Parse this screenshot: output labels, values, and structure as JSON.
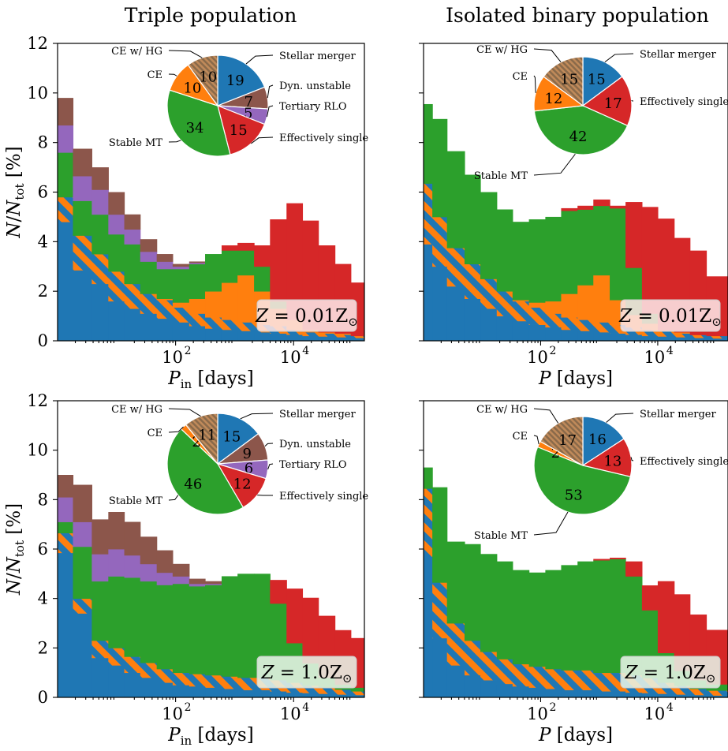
{
  "colors": {
    "ce_with_hg": "#A07848",
    "stellar_merger": "#1F77B4",
    "dyn_unstable": "#8C564B",
    "tertiary_rlo": "#9467BD",
    "effectively_single": "#D62728",
    "stable_mt": "#2CA02C",
    "ce": "#FF7F0E",
    "hatch_a": "#FF7F0E",
    "hatch_b": "#1F77B4"
  },
  "columns": [
    {
      "title": "Triple population"
    },
    {
      "title": "Isolated binary population"
    }
  ],
  "chart_data": [
    {
      "id": "triple-low-z",
      "type": "bar",
      "title": "Triple population",
      "xlabel_main": "P",
      "xlabel_sub": "in",
      "xlabel_unit": "[days]",
      "ylabel": "N/N_tot [%]",
      "ylim": [
        0,
        12
      ],
      "xscale": "log",
      "xlim_log10": [
        0.0,
        5.2
      ],
      "bin_edges_log10": [
        0.0,
        0.26,
        0.58,
        0.86,
        1.13,
        1.4,
        1.68,
        1.95,
        2.23,
        2.5,
        2.78,
        3.05,
        3.33,
        3.6,
        3.88,
        4.15,
        4.42,
        4.7,
        4.97,
        5.2
      ],
      "yticks": [
        0,
        2,
        4,
        6,
        8,
        10,
        12
      ],
      "xticks": [
        {
          "pos": 2,
          "label": "10",
          "exp": "2"
        },
        {
          "pos": 4,
          "label": "10",
          "exp": "4"
        }
      ],
      "stack_order": [
        "stellar_merger",
        "ce_with_hg",
        "ce",
        "stable_mt",
        "effectively_single",
        "tertiary_rlo",
        "dyn_unstable"
      ],
      "series": [
        {
          "key": "stellar_merger",
          "name": "Stellar merger",
          "values": [
            4.8,
            2.85,
            2.3,
            1.6,
            1.3,
            1.1,
            0.9,
            0.75,
            0.6,
            0.5,
            0.45,
            0.4,
            0.35,
            0.3,
            0.25,
            0.2,
            0.18,
            0.15,
            0.12
          ]
        },
        {
          "key": "ce_with_hg",
          "name": "CE w/ HG",
          "values": [
            1.0,
            1.4,
            1.2,
            1.2,
            1.0,
            0.8,
            0.75,
            0.6,
            0.5,
            0.45,
            0.4,
            0.35,
            0.3,
            0.3,
            0.2,
            0.15,
            0.12,
            0.1,
            0.08
          ]
        },
        {
          "key": "ce",
          "name": "CE",
          "values": [
            0.0,
            0.0,
            0.0,
            0.0,
            0.0,
            0.0,
            0.05,
            0.2,
            0.6,
            1.05,
            1.5,
            1.9,
            1.35,
            0.7,
            0.4,
            0.1,
            0.05,
            0.05,
            0.0
          ]
        },
        {
          "key": "stable_mt",
          "name": "Stable MT",
          "values": [
            1.8,
            1.4,
            1.6,
            1.5,
            1.6,
            1.3,
            1.2,
            1.35,
            1.4,
            1.5,
            1.3,
            1.0,
            1.0,
            0.3,
            0.0,
            0.0,
            0.0,
            0.0,
            0.0
          ]
        },
        {
          "key": "effectively_single",
          "name": "Effectively single",
          "values": [
            0.0,
            0.0,
            0.0,
            0.0,
            0.0,
            0.0,
            0.0,
            0.0,
            0.0,
            0.0,
            0.2,
            0.3,
            0.85,
            3.3,
            4.7,
            4.4,
            3.5,
            2.8,
            2.15
          ]
        },
        {
          "key": "tertiary_rlo",
          "name": "Tertiary RLO",
          "values": [
            1.1,
            1.0,
            1.0,
            0.8,
            0.6,
            0.4,
            0.3,
            0.1,
            0.05,
            0.0,
            0.0,
            0.0,
            0.0,
            0.0,
            0.0,
            0.0,
            0.0,
            0.0,
            0.0
          ]
        },
        {
          "key": "dyn_unstable",
          "name": "Dyn. unstable",
          "values": [
            1.1,
            1.1,
            0.9,
            0.9,
            0.6,
            0.5,
            0.3,
            0.1,
            0.05,
            0.0,
            0.0,
            0.0,
            0.0,
            0.0,
            0.0,
            0.0,
            0.0,
            0.0,
            0.0
          ]
        }
      ],
      "metallicity_label": {
        "lhs": "Z",
        "rhs": "= 0.01Z",
        "sun": "⊙"
      },
      "metallicity_box_color": "#FCE5E5",
      "pie": {
        "slices": [
          {
            "key": "stellar_merger",
            "label": "Stellar merger",
            "value": 19
          },
          {
            "key": "dyn_unstable",
            "label": "Dyn. unstable",
            "value": 7
          },
          {
            "key": "tertiary_rlo",
            "label": "Tertiary RLO",
            "value": 5
          },
          {
            "key": "effectively_single",
            "label": "Effectively single",
            "value": 15
          },
          {
            "key": "stable_mt",
            "label": "Stable MT",
            "value": 34
          },
          {
            "key": "ce",
            "label": "CE",
            "value": 10
          },
          {
            "key": "ce_with_hg",
            "label": "CE w/ HG",
            "value": 10
          }
        ]
      }
    },
    {
      "id": "binary-low-z",
      "type": "bar",
      "title": "Isolated binary population",
      "xlabel_main": "P",
      "xlabel_sub": "",
      "xlabel_unit": "[days]",
      "ylabel": "",
      "ylim": [
        0,
        12
      ],
      "xscale": "log",
      "xlim_log10": [
        0.0,
        5.2
      ],
      "bin_edges_log10": [
        0.0,
        0.15,
        0.4,
        0.7,
        0.97,
        1.25,
        1.52,
        1.8,
        2.08,
        2.35,
        2.63,
        2.9,
        3.18,
        3.45,
        3.73,
        4.0,
        4.28,
        4.55,
        4.83,
        5.2
      ],
      "yticks": [
        0,
        2,
        4,
        6,
        8,
        10,
        12
      ],
      "xticks": [
        {
          "pos": 2,
          "label": "10",
          "exp": "2"
        },
        {
          "pos": 4,
          "label": "10",
          "exp": "4"
        }
      ],
      "stack_order": [
        "stellar_merger",
        "ce_with_hg",
        "ce",
        "stable_mt",
        "effectively_single"
      ],
      "series": [
        {
          "key": "stellar_merger",
          "name": "Stellar merger",
          "values": [
            3.9,
            3.0,
            2.2,
            1.7,
            1.3,
            1.0,
            0.8,
            0.65,
            0.55,
            0.45,
            0.4,
            0.35,
            0.3,
            0.25,
            0.2,
            0.18,
            0.15,
            0.12,
            0.1
          ]
        },
        {
          "key": "ce_with_hg",
          "name": "CE w/ HG",
          "values": [
            2.45,
            2.0,
            1.55,
            1.4,
            1.2,
            1.0,
            0.8,
            0.7,
            0.55,
            0.5,
            0.45,
            0.4,
            0.35,
            0.3,
            0.25,
            0.2,
            0.15,
            0.12,
            0.1
          ]
        },
        {
          "key": "ce",
          "name": "CE",
          "values": [
            0.0,
            0.0,
            0.0,
            0.0,
            0.0,
            0.0,
            0.05,
            0.2,
            0.5,
            0.95,
            1.4,
            1.9,
            1.0,
            0.5,
            0.25,
            0.05,
            0.05,
            0.0,
            0.0
          ]
        },
        {
          "key": "stable_mt",
          "name": "Stable MT",
          "values": [
            3.2,
            3.95,
            3.9,
            3.6,
            3.5,
            3.3,
            3.15,
            3.35,
            3.4,
            3.35,
            3.05,
            2.8,
            3.7,
            1.9,
            0.4,
            0.0,
            0.0,
            0.0,
            0.0
          ]
        },
        {
          "key": "effectively_single",
          "name": "Effectively single",
          "values": [
            0.0,
            0.0,
            0.0,
            0.0,
            0.0,
            0.0,
            0.0,
            0.0,
            0.0,
            0.1,
            0.15,
            0.25,
            0.1,
            2.65,
            4.3,
            4.5,
            3.8,
            3.4,
            2.4
          ]
        }
      ],
      "metallicity_label": {
        "lhs": "Z",
        "rhs": "= 0.01Z",
        "sun": "⊙"
      },
      "metallicity_box_color": "#FCE5E5",
      "pie": {
        "slices": [
          {
            "key": "stellar_merger",
            "label": "Stellar merger",
            "value": 15
          },
          {
            "key": "effectively_single",
            "label": "Effectively single",
            "value": 17
          },
          {
            "key": "stable_mt",
            "label": "Stable MT",
            "value": 42
          },
          {
            "key": "ce",
            "label": "CE",
            "value": 12
          },
          {
            "key": "ce_with_hg",
            "label": "CE w/ HG",
            "value": 15
          }
        ]
      }
    },
    {
      "id": "triple-solar-z",
      "type": "bar",
      "title": "",
      "xlabel_main": "P",
      "xlabel_sub": "in",
      "xlabel_unit": "[days]",
      "ylabel": "N/N_tot [%]",
      "ylim": [
        0,
        12
      ],
      "xscale": "log",
      "xlim_log10": [
        0.0,
        5.2
      ],
      "bin_edges_log10": [
        0.0,
        0.26,
        0.58,
        0.86,
        1.13,
        1.4,
        1.68,
        1.95,
        2.23,
        2.5,
        2.78,
        3.05,
        3.33,
        3.6,
        3.88,
        4.15,
        4.42,
        4.7,
        4.97,
        5.2
      ],
      "yticks": [
        0,
        2,
        4,
        6,
        8,
        10,
        12
      ],
      "xticks": [
        {
          "pos": 2,
          "label": "10",
          "exp": "2"
        },
        {
          "pos": 4,
          "label": "10",
          "exp": "4"
        }
      ],
      "stack_order": [
        "stellar_merger",
        "ce_with_hg",
        "ce",
        "stable_mt",
        "effectively_single",
        "tertiary_rlo",
        "dyn_unstable"
      ],
      "series": [
        {
          "key": "stellar_merger",
          "name": "Stellar merger",
          "values": [
            5.85,
            3.4,
            1.6,
            1.3,
            1.0,
            0.8,
            0.6,
            0.5,
            0.45,
            0.4,
            0.35,
            0.3,
            0.3,
            0.25,
            0.2,
            0.18,
            0.15,
            0.12,
            0.1
          ]
        },
        {
          "key": "ce_with_hg",
          "name": "CE w/ HG",
          "values": [
            0.8,
            0.6,
            0.7,
            0.7,
            0.65,
            0.6,
            0.55,
            0.5,
            0.5,
            0.5,
            0.5,
            0.5,
            0.5,
            0.45,
            0.4,
            0.3,
            0.25,
            0.2,
            0.15
          ]
        },
        {
          "key": "ce",
          "name": "CE",
          "values": [
            0.0,
            0.0,
            0.0,
            0.0,
            0.0,
            0.0,
            0.0,
            0.0,
            0.0,
            0.0,
            0.0,
            0.0,
            0.0,
            0.0,
            0.0,
            0.0,
            0.0,
            0.0,
            0.0
          ]
        },
        {
          "key": "stable_mt",
          "name": "Stable MT",
          "values": [
            0.45,
            2.1,
            2.4,
            2.9,
            3.2,
            3.3,
            3.4,
            3.6,
            3.55,
            3.65,
            4.05,
            4.2,
            4.2,
            3.1,
            1.6,
            0.9,
            0.4,
            0.2,
            0.15
          ]
        },
        {
          "key": "effectively_single",
          "name": "Effectively single",
          "values": [
            0.0,
            0.0,
            0.0,
            0.0,
            0.0,
            0.0,
            0.0,
            0.0,
            0.0,
            0.0,
            0.0,
            0.0,
            0.0,
            0.95,
            2.2,
            2.65,
            2.5,
            2.2,
            2.0
          ]
        },
        {
          "key": "tertiary_rlo",
          "name": "Tertiary RLO",
          "values": [
            1.0,
            1.0,
            1.1,
            1.1,
            0.9,
            0.7,
            0.5,
            0.3,
            0.1,
            0.05,
            0.0,
            0.0,
            0.0,
            0.0,
            0.0,
            0.0,
            0.0,
            0.0,
            0.0
          ]
        },
        {
          "key": "dyn_unstable",
          "name": "Dyn. unstable",
          "values": [
            0.9,
            1.5,
            1.4,
            1.5,
            1.35,
            1.1,
            0.9,
            0.5,
            0.2,
            0.1,
            0.0,
            0.0,
            0.0,
            0.0,
            0.0,
            0.0,
            0.0,
            0.0,
            0.0
          ]
        }
      ],
      "metallicity_label": {
        "lhs": "Z",
        "rhs": "= 1.0Z",
        "sun": "⊙"
      },
      "metallicity_box_color": "#E6F2E6",
      "pie": {
        "slices": [
          {
            "key": "stellar_merger",
            "label": "Stellar merger",
            "value": 15
          },
          {
            "key": "dyn_unstable",
            "label": "Dyn. unstable",
            "value": 9
          },
          {
            "key": "tertiary_rlo",
            "label": "Tertiary RLO",
            "value": 6
          },
          {
            "key": "effectively_single",
            "label": "Effectively single",
            "value": 12
          },
          {
            "key": "stable_mt",
            "label": "Stable MT",
            "value": 46
          },
          {
            "key": "ce",
            "label": "CE",
            "value": 2
          },
          {
            "key": "ce_with_hg",
            "label": "CE w/ HG",
            "value": 11
          }
        ]
      }
    },
    {
      "id": "binary-solar-z",
      "type": "bar",
      "title": "",
      "xlabel_main": "P",
      "xlabel_sub": "",
      "xlabel_unit": "[days]",
      "ylabel": "",
      "ylim": [
        0,
        12
      ],
      "xscale": "log",
      "xlim_log10": [
        0.0,
        5.2
      ],
      "bin_edges_log10": [
        0.0,
        0.15,
        0.4,
        0.7,
        0.97,
        1.25,
        1.52,
        1.8,
        2.08,
        2.35,
        2.63,
        2.9,
        3.18,
        3.45,
        3.73,
        4.0,
        4.28,
        4.55,
        4.83,
        5.2
      ],
      "yticks": [
        0,
        2,
        4,
        6,
        8,
        10,
        12
      ],
      "xticks": [
        {
          "pos": 2,
          "label": "10",
          "exp": "2"
        },
        {
          "pos": 4,
          "label": "10",
          "exp": "4"
        }
      ],
      "stack_order": [
        "stellar_merger",
        "ce_with_hg",
        "ce",
        "stable_mt",
        "effectively_single"
      ],
      "series": [
        {
          "key": "stellar_merger",
          "name": "Stellar merger",
          "values": [
            5.7,
            2.4,
            1.3,
            0.9,
            0.7,
            0.55,
            0.45,
            0.4,
            0.35,
            0.3,
            0.3,
            0.25,
            0.25,
            0.2,
            0.18,
            0.15,
            0.12,
            0.1,
            0.08
          ]
        },
        {
          "key": "ce_with_hg",
          "name": "CE w/ HG",
          "values": [
            2.75,
            2.25,
            1.7,
            1.4,
            1.15,
            1.0,
            0.9,
            0.85,
            0.8,
            0.8,
            0.8,
            0.75,
            0.75,
            0.7,
            0.6,
            0.45,
            0.35,
            0.25,
            0.2
          ]
        },
        {
          "key": "ce",
          "name": "CE",
          "values": [
            0.0,
            0.0,
            0.0,
            0.0,
            0.0,
            0.0,
            0.0,
            0.0,
            0.0,
            0.0,
            0.0,
            0.0,
            0.0,
            0.0,
            0.0,
            0.0,
            0.0,
            0.0,
            0.0
          ]
        },
        {
          "key": "stable_mt",
          "name": "Stable MT",
          "values": [
            0.85,
            3.85,
            3.3,
            3.9,
            3.95,
            3.95,
            3.8,
            3.8,
            4.0,
            4.25,
            4.4,
            4.55,
            4.6,
            4.0,
            2.75,
            1.2,
            0.6,
            0.35,
            0.25
          ]
        },
        {
          "key": "effectively_single",
          "name": "Effectively single",
          "values": [
            0.0,
            0.0,
            0.0,
            0.0,
            0.0,
            0.0,
            0.0,
            0.0,
            0.0,
            0.0,
            0.0,
            0.05,
            0.05,
            0.6,
            1.0,
            2.9,
            3.1,
            2.65,
            2.2
          ]
        }
      ],
      "metallicity_label": {
        "lhs": "Z",
        "rhs": "= 1.0Z",
        "sun": "⊙"
      },
      "metallicity_box_color": "#E6F2E6",
      "pie": {
        "slices": [
          {
            "key": "stellar_merger",
            "label": "Stellar merger",
            "value": 16
          },
          {
            "key": "effectively_single",
            "label": "Effectively single",
            "value": 13
          },
          {
            "key": "stable_mt",
            "label": "Stable MT",
            "value": 53
          },
          {
            "key": "ce",
            "label": "CE",
            "value": 2
          },
          {
            "key": "ce_with_hg",
            "label": "CE w/ HG",
            "value": 17
          }
        ]
      }
    }
  ]
}
